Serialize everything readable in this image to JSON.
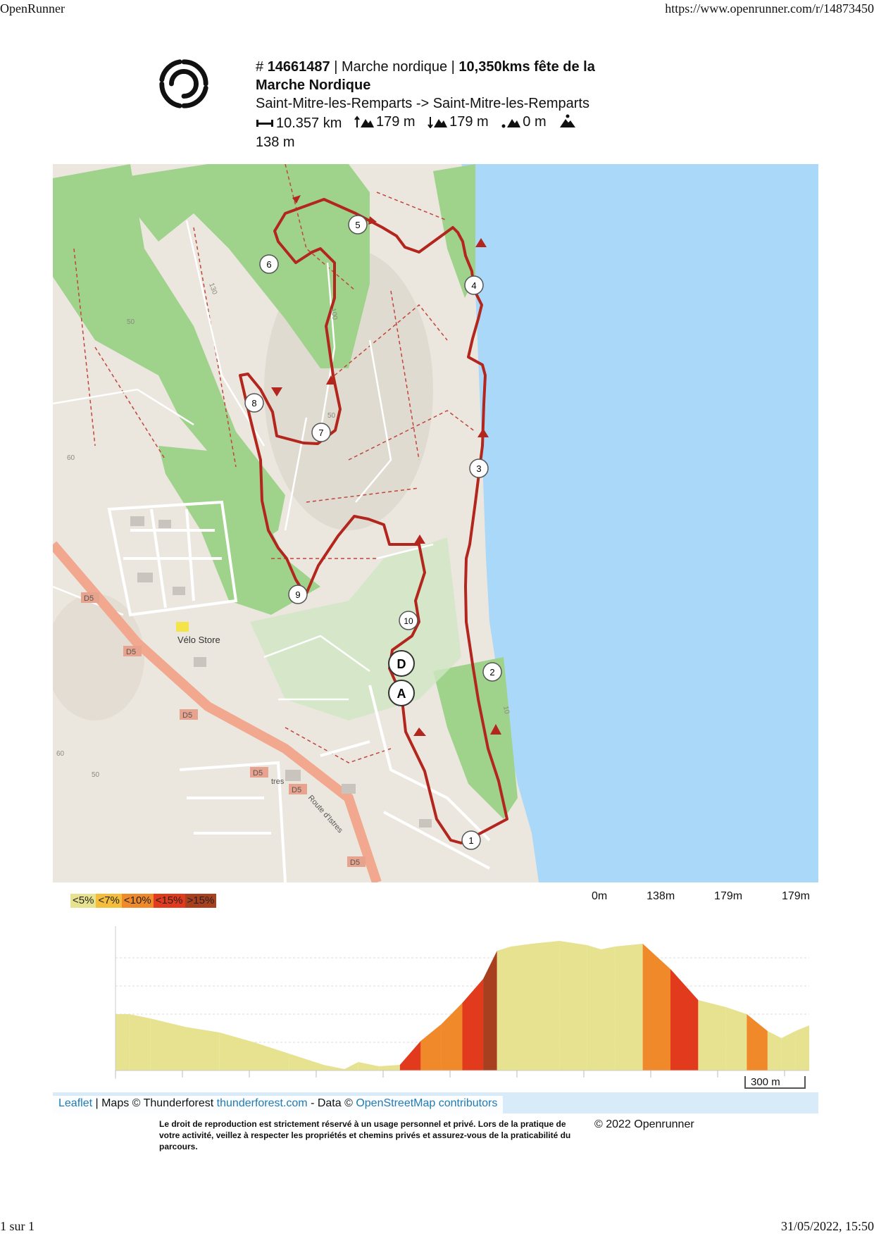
{
  "print_header": {
    "site": "OpenRunner",
    "url": "https://www.openrunner.com/r/14873450"
  },
  "print_footer": {
    "page": "1 sur 1",
    "datetime": "31/05/2022, 15:50"
  },
  "route": {
    "id_prefix": "# ",
    "id": "14661487",
    "sep1": " | ",
    "activity": "Marche nordique",
    "sep2": " | ",
    "name": "10,350kms fête de la Marche Nordique",
    "from_to": "Saint-Mitre-les-Remparts -> Saint-Mitre-les-Remparts",
    "distance": "10.357 km",
    "ascent": "179 m",
    "descent": "179 m",
    "min_alt": "0 m",
    "max_alt": "138 m"
  },
  "map": {
    "waypoints": [
      "1",
      "2",
      "3",
      "4",
      "5",
      "6",
      "7",
      "8",
      "9",
      "10"
    ],
    "start_label": "D",
    "end_label": "A",
    "place_label": "Vélo Store",
    "road_labels": [
      "D5",
      "D5",
      "D5",
      "D5",
      "D5",
      "D5"
    ],
    "road_name": "Route d'Istres",
    "road_fragment": "tres",
    "contours": [
      "50",
      "130",
      "100",
      "60",
      "50",
      "10",
      "60",
      "50"
    ],
    "colors": {
      "route": "#b3261e",
      "sea": "#aad8f8",
      "forest": "#9fd38c",
      "land": "#ebe7df"
    }
  },
  "grade_legend": [
    {
      "label": "<5%",
      "color": "#e6e28f"
    },
    {
      "label": "<7%",
      "color": "#f4bd3c"
    },
    {
      "label": "<10%",
      "color": "#f0892a"
    },
    {
      "label": "<15%",
      "color": "#e13a1d"
    },
    {
      "label": ">15%",
      "color": "#a8401f"
    }
  ],
  "alt_labels": [
    "0m",
    "138m",
    "179m",
    "179m"
  ],
  "scale_label": "300 m",
  "attribution": {
    "leaflet": "Leaflet",
    "maps": " | Maps © Thunderforest ",
    "tf_link": "thunderforest.com",
    "data": " - Data © ",
    "osm_link": "OpenStreetMap contributors"
  },
  "legal": "Le droit de reproduction est strictement réservé à un usage personnel et privé. Lors de la pratique de votre activité, veillez à respecter les propriétés et chemins privés et assurez-vous de la praticabilité du parcours.",
  "copyright": "© 2022 Openrunner"
}
